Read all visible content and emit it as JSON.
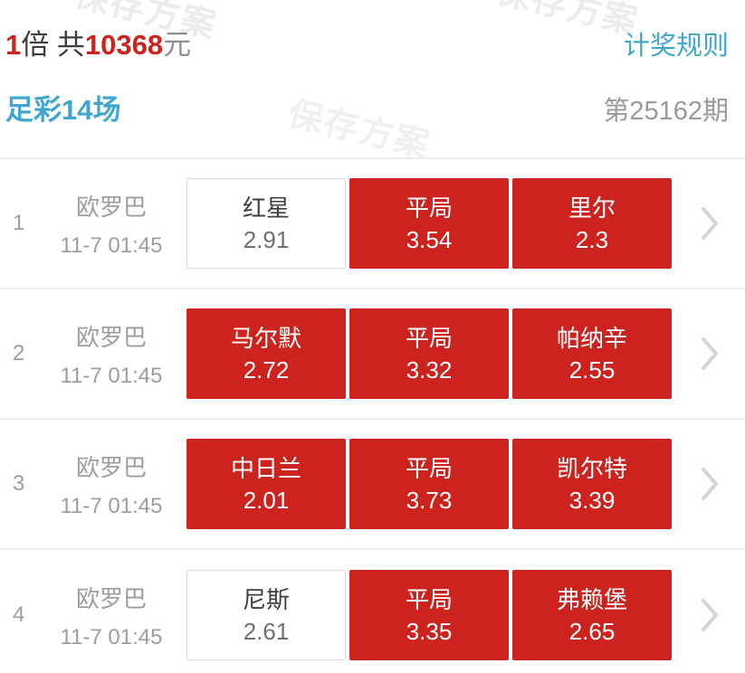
{
  "colors": {
    "accent_red": "#cc231e",
    "accent_blue": "#3fa6d0"
  },
  "watermark": {
    "text": "保存方案"
  },
  "header": {
    "multiplier_value": "1",
    "multiplier_unit": "倍",
    "total_prefix": "共",
    "total_amount": "10368",
    "total_unit": "元",
    "rules_link": "计奖规则",
    "lottery_name": "足彩14场",
    "issue_label": "第25162期"
  },
  "matches": [
    {
      "index": "1",
      "league": "欧罗巴",
      "time": "11-7 01:45",
      "options": [
        {
          "label": "红星",
          "odds": "2.91",
          "selected": false
        },
        {
          "label": "平局",
          "odds": "3.54",
          "selected": true
        },
        {
          "label": "里尔",
          "odds": "2.3",
          "selected": true
        }
      ]
    },
    {
      "index": "2",
      "league": "欧罗巴",
      "time": "11-7 01:45",
      "options": [
        {
          "label": "马尔默",
          "odds": "2.72",
          "selected": true
        },
        {
          "label": "平局",
          "odds": "3.32",
          "selected": true
        },
        {
          "label": "帕纳辛",
          "odds": "2.55",
          "selected": true
        }
      ]
    },
    {
      "index": "3",
      "league": "欧罗巴",
      "time": "11-7 01:45",
      "options": [
        {
          "label": "中日兰",
          "odds": "2.01",
          "selected": true
        },
        {
          "label": "平局",
          "odds": "3.73",
          "selected": true
        },
        {
          "label": "凯尔特",
          "odds": "3.39",
          "selected": true
        }
      ]
    },
    {
      "index": "4",
      "league": "欧罗巴",
      "time": "11-7 01:45",
      "options": [
        {
          "label": "尼斯",
          "odds": "2.61",
          "selected": false
        },
        {
          "label": "平局",
          "odds": "3.35",
          "selected": true
        },
        {
          "label": "弗赖堡",
          "odds": "2.65",
          "selected": true
        }
      ]
    }
  ]
}
